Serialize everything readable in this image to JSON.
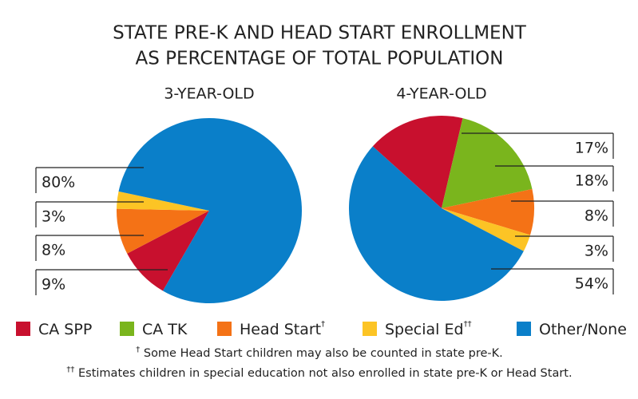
{
  "title": [
    "STATE PRE-K AND HEAD START ENROLLMENT",
    "AS PERCENTAGE OF TOTAL POPULATION"
  ],
  "chart_data": [
    {
      "type": "pie",
      "title": "3-YEAR-OLD",
      "categories": [
        "CA SPP",
        "Head Start",
        "Special Ed",
        "Other/None"
      ],
      "values": [
        9,
        8,
        3,
        80
      ],
      "value_labels": [
        "9%",
        "8%",
        "3%",
        "80%"
      ],
      "colors": [
        "#c8102e",
        "#f47216",
        "#fcc425",
        "#0a7fc9"
      ]
    },
    {
      "type": "pie",
      "title": "4-YEAR-OLD",
      "categories": [
        "CA SPP",
        "CA TK",
        "Head Start",
        "Special Ed",
        "Other/None"
      ],
      "values": [
        17,
        18,
        8,
        3,
        54
      ],
      "value_labels": [
        "17%",
        "18%",
        "8%",
        "3%",
        "54%"
      ],
      "colors": [
        "#c8102e",
        "#7ab51d",
        "#f47216",
        "#fcc425",
        "#0a7fc9"
      ]
    }
  ],
  "legend": [
    {
      "name": "CA SPP",
      "color": "#c8102e"
    },
    {
      "name": "CA TK",
      "color": "#7ab51d"
    },
    {
      "name": "Head Start",
      "mark": "†",
      "color": "#f47216"
    },
    {
      "name": "Special Ed",
      "mark": "††",
      "color": "#fcc425"
    },
    {
      "name": "Other/None",
      "color": "#0a7fc9"
    }
  ],
  "footnotes": [
    {
      "mark": "†",
      "text": " Some Head Start children may also be counted in state pre-K."
    },
    {
      "mark": "††",
      "text": " Estimates children in special education not also enrolled in state pre-K or Head Start."
    }
  ]
}
